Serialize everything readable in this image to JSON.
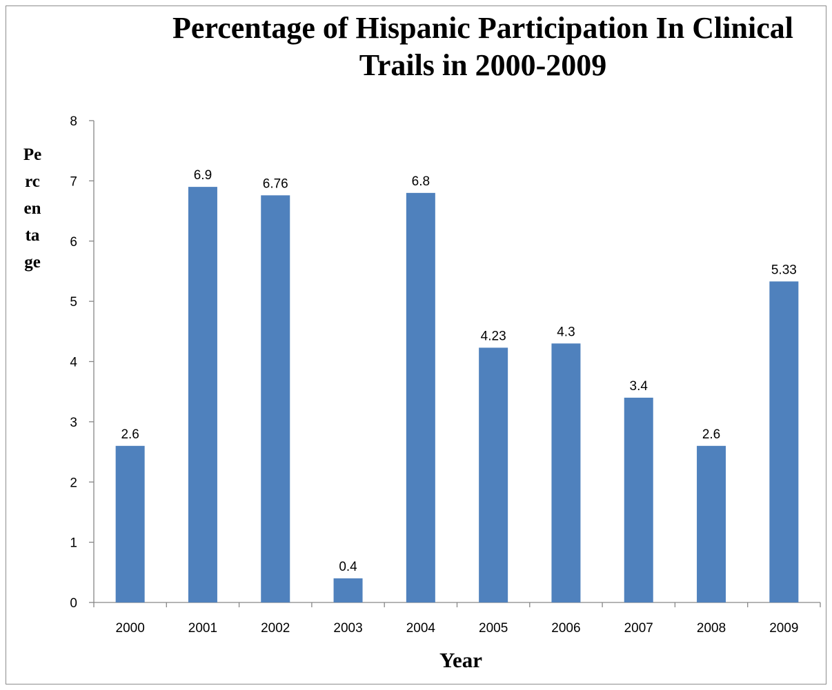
{
  "chart_data": {
    "type": "bar",
    "title": "Percentage of Hispanic Participation In Clinical Trails in 2000-2009",
    "xlabel": "Year",
    "ylabel": "Percentage",
    "categories": [
      "2000",
      "2001",
      "2002",
      "2003",
      "2004",
      "2005",
      "2006",
      "2007",
      "2008",
      "2009"
    ],
    "values": [
      2.6,
      6.9,
      6.76,
      0.4,
      6.8,
      4.23,
      4.3,
      3.4,
      2.6,
      5.33
    ],
    "data_labels": [
      "2.6",
      "6.9",
      "6.76",
      "0.4",
      "6.8",
      "4.23",
      "4.3",
      "3.4",
      "2.6",
      "5.33"
    ],
    "ylim": [
      0,
      8
    ],
    "yticks": [
      0,
      1,
      2,
      3,
      4,
      5,
      6,
      7,
      8
    ],
    "grid": false,
    "legend": "none",
    "colors": {
      "bar": "#4F81BD",
      "axis": "#868686"
    }
  }
}
